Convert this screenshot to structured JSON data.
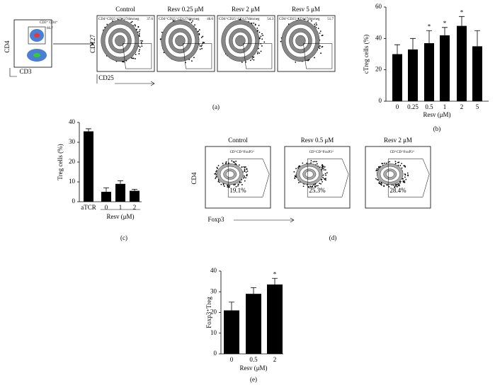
{
  "chart_data": [
    {
      "type": "bar",
      "panel_label": "(b)",
      "y_label": "cTreg cells (%)",
      "x_label": "Resv (μM)",
      "categories": [
        "0",
        "0.25",
        "0.5",
        "1",
        "2",
        "5"
      ],
      "values": [
        30,
        33,
        37,
        42,
        48,
        35
      ],
      "errors": [
        6,
        7,
        8,
        5,
        6,
        10
      ],
      "significance": [
        null,
        null,
        "*",
        "*",
        "*",
        null
      ],
      "color": "#000000",
      "ylim": [
        0,
        60
      ],
      "yticks": [
        0,
        20,
        40,
        60
      ]
    },
    {
      "type": "bar",
      "panel_label": "(c)",
      "y_label": "Treg cells (%)",
      "x_label": "Resv (μM)",
      "categories": [
        "aTCR",
        "0",
        "1",
        "2"
      ],
      "values": [
        35.5,
        5,
        9,
        5.5
      ],
      "errors": [
        1.3,
        2,
        1.6,
        0.8
      ],
      "color": "#000000",
      "ylim": [
        0,
        40
      ],
      "yticks": [
        0,
        10,
        20,
        30,
        40
      ]
    },
    {
      "type": "bar",
      "panel_label": "(e)",
      "y_label": "Foxp3⁺Treg",
      "x_label": "Resv (μM)",
      "categories": [
        "0",
        "0.5",
        "2"
      ],
      "values": [
        21,
        29,
        33.5
      ],
      "errors": [
        4,
        3,
        3
      ],
      "significance": [
        null,
        null,
        "*"
      ],
      "color": "#000000",
      "ylim": [
        0,
        40
      ],
      "yticks": [
        0,
        10,
        20,
        30,
        40
      ]
    }
  ],
  "panel_a": {
    "label": "(a)",
    "gate_plot": {
      "y_label": "CD4",
      "x_label": "CD3",
      "gate_label": "CD3⁺ CD4⁺",
      "gate_value": "66.7"
    },
    "y_label": "CD127",
    "x_label": "CD25",
    "plots": [
      {
        "title": "Control",
        "gate_label": "CD4⁺CD25⁺CD127dim/neg",
        "value": "37.6"
      },
      {
        "title": "Resv 0.25 μM",
        "gate_label": "CD4⁺CD25⁺CD127dim/neg",
        "value": "46.6"
      },
      {
        "title": "Resv 2 μM",
        "gate_label": "CD4⁺CD25⁺CD127dim/neg",
        "value": "54.3"
      },
      {
        "title": "Resv 5 μM",
        "gate_label": "CD4⁺CD25⁺CD127dim/neg",
        "value": "51.7"
      }
    ]
  },
  "panel_d": {
    "label": "(d)",
    "y_label": "CD4",
    "x_label": "Foxp3",
    "plots": [
      {
        "title": "Control",
        "gate_label": "CD⁺CD⁺FoxP3⁺",
        "value": "19.1%"
      },
      {
        "title": "Resv 0.5 μM",
        "gate_label": "CD⁺CD⁺FoxP3⁺",
        "value": "25.3%"
      },
      {
        "title": "Resv 2 μM",
        "gate_label": "CD⁺CD⁺FoxP3⁺",
        "value": "28.4%"
      }
    ]
  }
}
